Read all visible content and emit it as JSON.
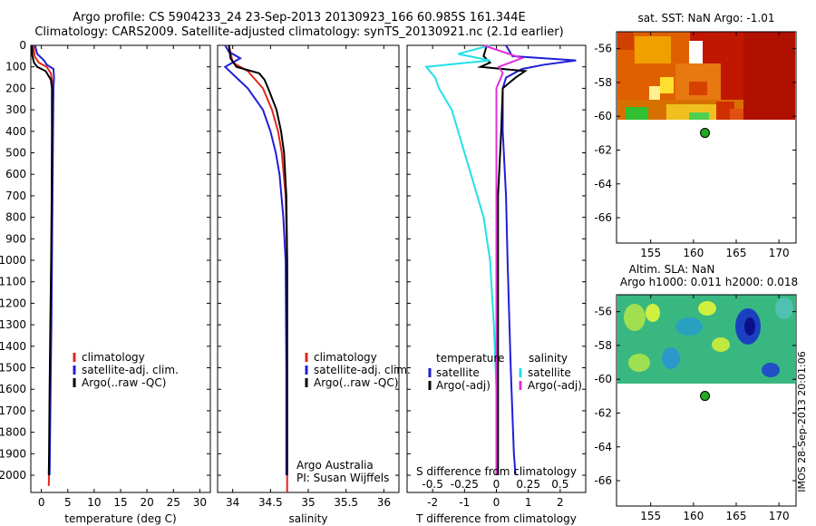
{
  "header": {
    "line1": "Argo profile: CS 5904233_24 23-Sep-2013 20130923_166 60.985S 161.344E",
    "line2": "Climatology: CARS2009. Satellite-adjusted climatology: synTS_20130921.nc (2.1d earlier)"
  },
  "depth_ticks": [
    0,
    100,
    200,
    300,
    400,
    500,
    600,
    700,
    800,
    900,
    1000,
    1100,
    1200,
    1300,
    1400,
    1500,
    1600,
    1700,
    1800,
    1900,
    2000
  ],
  "colors": {
    "climatology": "#e0271c",
    "satellite": "#1f1fd6",
    "argo": "#000000",
    "sal_satellite": "#22e0e8",
    "sal_argo": "#e030d8",
    "marker": "#22aa22"
  },
  "chart_data": [
    {
      "type": "line",
      "xlabel": "temperature (deg C)",
      "xlim": [
        -2,
        32
      ],
      "ylim": [
        2080,
        0
      ],
      "xticks": [
        0,
        5,
        10,
        15,
        20,
        25,
        30
      ],
      "legend": [
        "climatology",
        "satellite-adj. clim.",
        "Argo(..raw -QC)"
      ],
      "series": [
        {
          "name": "climatology",
          "depth": [
            0,
            50,
            80,
            100,
            130,
            160,
            200,
            400,
            700,
            1000,
            1300,
            1600,
            1900,
            2050
          ],
          "values": [
            -1.5,
            -1.3,
            -0.5,
            1.0,
            1.8,
            2.0,
            2.1,
            2.1,
            2.0,
            1.9,
            1.75,
            1.6,
            1.5,
            1.4
          ]
        },
        {
          "name": "satellite-adj. clim.",
          "depth": [
            0,
            40,
            70,
            90,
            110,
            150,
            200,
            400,
            700,
            1000,
            1300,
            1600,
            1900,
            2000
          ],
          "values": [
            -1.2,
            -0.8,
            0.5,
            1.0,
            2.3,
            2.4,
            2.3,
            2.2,
            2.1,
            2.0,
            1.9,
            1.75,
            1.6,
            1.55
          ]
        },
        {
          "name": "Argo(..raw -QC)",
          "depth": [
            0,
            50,
            80,
            100,
            120,
            160,
            200,
            400,
            700,
            1000,
            1300,
            1600,
            1900,
            2000
          ],
          "values": [
            -1.8,
            -1.7,
            -1.4,
            -0.8,
            0.8,
            1.8,
            2.0,
            2.0,
            1.95,
            1.85,
            1.7,
            1.55,
            1.45,
            1.4
          ]
        }
      ]
    },
    {
      "type": "line",
      "xlabel": "salinity",
      "xlim": [
        33.8,
        36.2
      ],
      "ylim": [
        2080,
        0
      ],
      "xticks": [
        34,
        34.5,
        35,
        35.5,
        36
      ],
      "legend": [
        "climatology",
        "satellite-adj. clim.",
        "Argo(..raw -QC)"
      ],
      "notes": [
        "Argo Australia",
        "PI: Susan Wijffels"
      ],
      "series": [
        {
          "name": "climatology",
          "depth": [
            0,
            80,
            120,
            200,
            300,
            400,
            500,
            700,
            1000,
            1500,
            2000,
            2080
          ],
          "values": [
            33.95,
            34.0,
            34.2,
            34.4,
            34.52,
            34.6,
            34.65,
            34.7,
            34.72,
            34.72,
            34.72,
            34.72
          ]
        },
        {
          "name": "satellite-adj. clim.",
          "depth": [
            0,
            30,
            60,
            100,
            150,
            200,
            300,
            400,
            500,
            600,
            800,
            1000,
            1500,
            2000
          ],
          "values": [
            33.9,
            33.95,
            34.1,
            33.9,
            34.05,
            34.2,
            34.4,
            34.5,
            34.57,
            34.62,
            34.67,
            34.7,
            34.71,
            34.71
          ]
        },
        {
          "name": "Argo(..raw -QC)",
          "depth": [
            0,
            60,
            100,
            130,
            160,
            200,
            300,
            400,
            500,
            700,
            1000,
            1500,
            2000
          ],
          "values": [
            33.95,
            33.97,
            34.05,
            34.35,
            34.42,
            34.47,
            34.58,
            34.64,
            34.68,
            34.71,
            34.72,
            34.72,
            34.72
          ]
        }
      ]
    },
    {
      "type": "line",
      "xlabel": "T difference from climatology",
      "xlabel_top": "S difference from climatology",
      "xlim": [
        -2.8,
        2.8
      ],
      "ylim": [
        2080,
        0
      ],
      "xticks": [
        -2,
        -1,
        0,
        1,
        2
      ],
      "xticks_top": [
        -0.5,
        -0.25,
        0,
        0.25,
        0.5
      ],
      "legend_left_title": "temperature",
      "legend_right_title": "salinity",
      "legend_left": [
        "satellite",
        "Argo(-adj)"
      ],
      "legend_right": [
        "satellite",
        "Argo(-adj)"
      ],
      "series": [
        {
          "name": "T satellite",
          "depth": [
            0,
            50,
            70,
            90,
            110,
            150,
            200,
            400,
            700,
            1000,
            1500,
            1900,
            2000
          ],
          "values": [
            0.3,
            0.5,
            2.5,
            1.5,
            0.8,
            0.3,
            0.2,
            0.2,
            0.3,
            0.35,
            0.45,
            0.55,
            0.6
          ]
        },
        {
          "name": "T Argo(-adj)",
          "depth": [
            0,
            50,
            80,
            100,
            120,
            150,
            200,
            400,
            700,
            1000,
            1500,
            2000
          ],
          "values": [
            -0.3,
            -0.4,
            -0.2,
            -0.5,
            0.9,
            0.6,
            0.2,
            0.15,
            0.05,
            0.05,
            0.05,
            0.05
          ]
        },
        {
          "name": "S satellite",
          "depth": [
            0,
            40,
            70,
            100,
            150,
            200,
            300,
            400,
            600,
            800,
            1000,
            1300,
            1600,
            2000
          ],
          "values": [
            -0.05,
            -0.3,
            -0.05,
            -0.55,
            -0.48,
            -0.45,
            -0.35,
            -0.3,
            -0.2,
            -0.1,
            -0.05,
            -0.02,
            0,
            0
          ]
        },
        {
          "name": "S Argo(-adj)",
          "depth": [
            0,
            40,
            60,
            100,
            130,
            200,
            300,
            500,
            1000,
            1500,
            2000
          ],
          "values": [
            -0.1,
            0.1,
            0.2,
            0.02,
            0.05,
            0,
            0,
            0,
            0,
            0,
            0
          ]
        }
      ]
    },
    {
      "type": "heatmap",
      "title": "sat. SST: NaN Argo: -1.01",
      "xticks": [
        155,
        160,
        165,
        170
      ],
      "yticks": [
        -56,
        -58,
        -60,
        -62,
        -64,
        -66
      ],
      "xlim": [
        151,
        172
      ],
      "ylim": [
        -67.5,
        -55
      ],
      "data_extent": {
        "lat_top": -55,
        "lat_bottom": -60.2
      },
      "marker": {
        "lon": 161.344,
        "lat": -60.985
      }
    },
    {
      "type": "heatmap",
      "title_line1": "Altim. SLA: NaN",
      "title_line2": "Argo h1000: 0.011 h2000: 0.018",
      "xticks": [
        155,
        160,
        165,
        170
      ],
      "yticks": [
        -56,
        -58,
        -60,
        -62,
        -64,
        -66
      ],
      "xlim": [
        151,
        172
      ],
      "ylim": [
        -67.5,
        -55
      ],
      "data_extent": {
        "lat_top": -55,
        "lat_bottom": -60.2
      },
      "marker": {
        "lon": 161.344,
        "lat": -60.985
      }
    }
  ],
  "side_stamp": "IMOS 28-Sep-2013 20:01:06"
}
